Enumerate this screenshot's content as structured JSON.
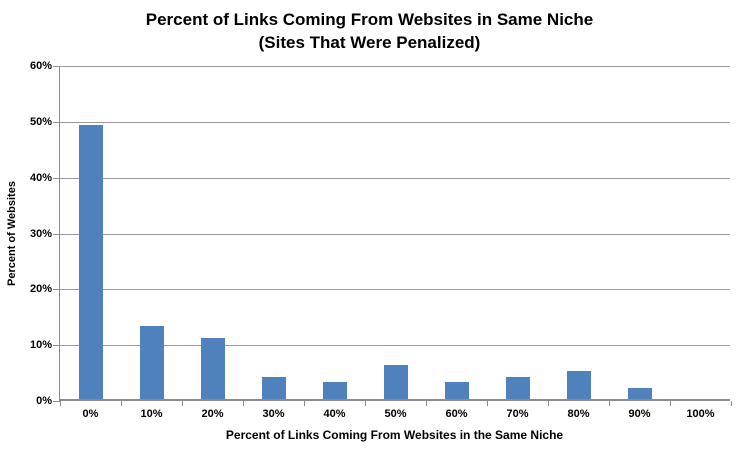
{
  "chart_data": {
    "type": "bar",
    "title": "Percent of Links Coming From Websites in Same Niche",
    "subtitle": "(Sites That Were Penalized)",
    "categories": [
      "0%",
      "10%",
      "20%",
      "30%",
      "40%",
      "50%",
      "60%",
      "70%",
      "80%",
      "90%",
      "100%"
    ],
    "values": [
      49,
      13,
      11,
      4,
      3,
      6,
      3,
      4,
      5,
      2,
      0
    ],
    "xlabel": "Percent of Links Coming From Websites in the Same Niche",
    "ylabel": "Percent of Websites",
    "ylim": [
      0,
      60
    ],
    "ytick_step": 10,
    "ytick_labels": [
      "0%",
      "10%",
      "20%",
      "30%",
      "40%",
      "50%",
      "60%"
    ],
    "grid": true,
    "legend": false,
    "colors": {
      "bar": "#4f81bd",
      "gridline": "#9b9b9b",
      "axis": "#8c8c8c",
      "text": "#000000",
      "background": "#ffffff"
    }
  }
}
